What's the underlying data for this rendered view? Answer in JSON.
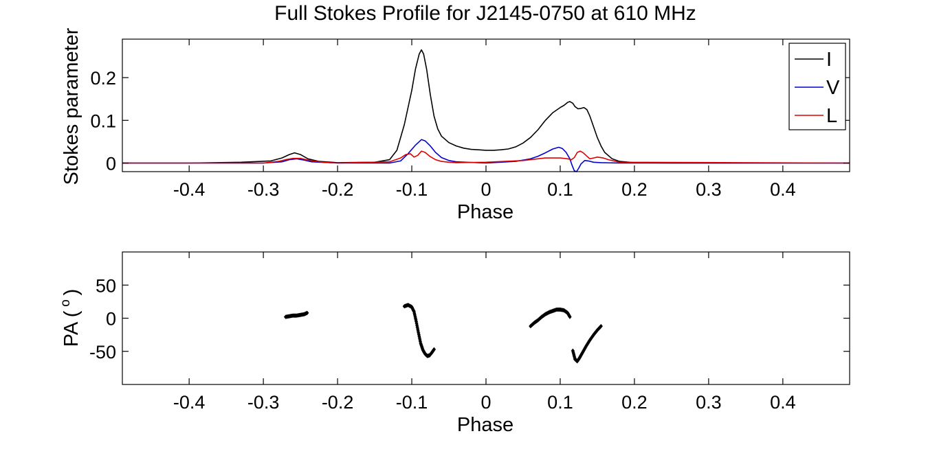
{
  "figure": {
    "title": "Full Stokes Profile for J2145-0750 at 610 MHz"
  },
  "chart_data": [
    {
      "type": "line",
      "title": "Full Stokes Profile for J2145-0750 at 610 MHz",
      "xlabel": "Phase",
      "ylabel": "Stokes parameter",
      "xlim": [
        -0.49,
        0.49
      ],
      "ylim": [
        -0.02,
        0.29
      ],
      "xticks": [
        -0.4,
        -0.3,
        -0.2,
        -0.1,
        0,
        0.1,
        0.2,
        0.3,
        0.4
      ],
      "xtick_labels": [
        "-0.4",
        "-0.3",
        "-0.2",
        "-0.1",
        "0",
        "0.1",
        "0.2",
        "0.3",
        "0.4"
      ],
      "yticks": [
        0,
        0.1,
        0.2
      ],
      "ytick_labels": [
        "0",
        "0.1",
        "0.2"
      ],
      "grid": false,
      "legend": {
        "position": "top-right",
        "entries": [
          "I",
          "V",
          "L"
        ]
      },
      "series": [
        {
          "name": "I",
          "color": "#000000",
          "x": [
            -0.49,
            -0.4,
            -0.33,
            -0.29,
            -0.275,
            -0.265,
            -0.258,
            -0.25,
            -0.24,
            -0.225,
            -0.2,
            -0.15,
            -0.13,
            -0.12,
            -0.11,
            -0.1,
            -0.095,
            -0.09,
            -0.087,
            -0.084,
            -0.08,
            -0.075,
            -0.07,
            -0.065,
            -0.06,
            -0.05,
            -0.04,
            -0.03,
            -0.02,
            -0.01,
            0.0,
            0.01,
            0.02,
            0.03,
            0.04,
            0.05,
            0.06,
            0.07,
            0.08,
            0.09,
            0.1,
            0.105,
            0.11,
            0.113,
            0.117,
            0.12,
            0.124,
            0.128,
            0.132,
            0.136,
            0.14,
            0.145,
            0.15,
            0.155,
            0.16,
            0.17,
            0.18,
            0.2,
            0.25,
            0.3,
            0.4,
            0.49
          ],
          "values": [
            0.0,
            0.0,
            0.002,
            0.005,
            0.012,
            0.02,
            0.024,
            0.02,
            0.01,
            0.004,
            0.001,
            0.002,
            0.008,
            0.03,
            0.09,
            0.17,
            0.22,
            0.255,
            0.265,
            0.255,
            0.22,
            0.16,
            0.11,
            0.08,
            0.063,
            0.048,
            0.04,
            0.035,
            0.032,
            0.031,
            0.03,
            0.03,
            0.031,
            0.033,
            0.038,
            0.047,
            0.06,
            0.078,
            0.1,
            0.118,
            0.13,
            0.135,
            0.142,
            0.144,
            0.14,
            0.132,
            0.127,
            0.128,
            0.13,
            0.125,
            0.11,
            0.085,
            0.06,
            0.04,
            0.025,
            0.01,
            0.004,
            0.001,
            0.0,
            0.0,
            0.0,
            0.0
          ]
        },
        {
          "name": "V",
          "color": "#0000cc",
          "x": [
            -0.49,
            -0.3,
            -0.275,
            -0.265,
            -0.255,
            -0.245,
            -0.235,
            -0.2,
            -0.13,
            -0.115,
            -0.105,
            -0.095,
            -0.087,
            -0.082,
            -0.075,
            -0.068,
            -0.06,
            -0.05,
            -0.04,
            0.0,
            0.04,
            0.06,
            0.07,
            0.08,
            0.09,
            0.098,
            0.103,
            0.108,
            0.113,
            0.116,
            0.119,
            0.122,
            0.125,
            0.128,
            0.133,
            0.138,
            0.145,
            0.155,
            0.18,
            0.49
          ],
          "values": [
            0.0,
            0.0,
            0.003,
            0.008,
            0.01,
            0.007,
            0.003,
            0.0,
            0.0,
            0.005,
            0.022,
            0.042,
            0.055,
            0.052,
            0.04,
            0.025,
            0.013,
            0.006,
            0.003,
            0.0,
            0.004,
            0.01,
            0.016,
            0.024,
            0.033,
            0.037,
            0.034,
            0.025,
            0.01,
            -0.005,
            -0.018,
            -0.02,
            -0.012,
            -0.002,
            0.006,
            0.005,
            0.002,
            0.001,
            0.0,
            0.0
          ]
        },
        {
          "name": "L",
          "color": "#dd0000",
          "x": [
            -0.49,
            -0.3,
            -0.28,
            -0.27,
            -0.26,
            -0.25,
            -0.24,
            -0.22,
            -0.2,
            -0.13,
            -0.115,
            -0.108,
            -0.102,
            -0.097,
            -0.092,
            -0.087,
            -0.082,
            -0.075,
            -0.068,
            -0.06,
            -0.05,
            -0.04,
            0.0,
            0.05,
            0.08,
            0.1,
            0.11,
            0.115,
            0.119,
            0.123,
            0.127,
            0.131,
            0.136,
            0.14,
            0.145,
            0.15,
            0.158,
            0.165,
            0.18,
            0.49
          ],
          "values": [
            0.0,
            0.0,
            0.004,
            0.008,
            0.011,
            0.011,
            0.007,
            0.002,
            0.0,
            0.003,
            0.012,
            0.02,
            0.022,
            0.014,
            0.018,
            0.028,
            0.025,
            0.015,
            0.008,
            0.004,
            0.002,
            0.001,
            0.002,
            0.006,
            0.012,
            0.012,
            0.01,
            0.008,
            0.013,
            0.025,
            0.028,
            0.024,
            0.016,
            0.01,
            0.012,
            0.014,
            0.012,
            0.008,
            0.002,
            0.0
          ]
        }
      ]
    },
    {
      "type": "scatter",
      "xlabel": "Phase",
      "ylabel": "PA ( o )",
      "xlim": [
        -0.49,
        0.49
      ],
      "ylim": [
        -100,
        100
      ],
      "xticks": [
        -0.4,
        -0.3,
        -0.2,
        -0.1,
        0,
        0.1,
        0.2,
        0.3,
        0.4
      ],
      "xtick_labels": [
        "-0.4",
        "-0.3",
        "-0.2",
        "-0.1",
        "0",
        "0.1",
        "0.2",
        "0.3",
        "0.4"
      ],
      "yticks": [
        -50,
        0,
        50
      ],
      "ytick_labels": [
        "-50",
        "0",
        "50"
      ],
      "grid": false,
      "series": [
        {
          "name": "PA",
          "color": "#000000",
          "segments": [
            {
              "x": [
                -0.27,
                -0.265,
                -0.26,
                -0.255,
                -0.25,
                -0.245,
                -0.241
              ],
              "values": [
                2,
                3,
                4,
                4,
                5,
                6,
                8
              ]
            },
            {
              "x": [
                -0.11,
                -0.105,
                -0.1,
                -0.097,
                -0.094,
                -0.091,
                -0.088,
                -0.085,
                -0.082,
                -0.079,
                -0.076,
                -0.073,
                -0.07
              ],
              "values": [
                18,
                20,
                17,
                10,
                -5,
                -22,
                -38,
                -48,
                -54,
                -57,
                -56,
                -52,
                -47
              ]
            },
            {
              "x": [
                0.06,
                0.065,
                0.07,
                0.075,
                0.08,
                0.085,
                0.09,
                0.095,
                0.1,
                0.105,
                0.11,
                0.113
              ],
              "values": [
                -12,
                -7,
                -3,
                2,
                6,
                9,
                11,
                13,
                13,
                12,
                8,
                2
              ]
            },
            {
              "x": [
                0.117,
                0.12,
                0.123,
                0.126,
                0.13,
                0.135,
                0.14,
                0.145,
                0.15,
                0.155
              ],
              "values": [
                -49,
                -62,
                -65,
                -60,
                -52,
                -42,
                -33,
                -25,
                -18,
                -12
              ]
            }
          ]
        }
      ]
    }
  ]
}
